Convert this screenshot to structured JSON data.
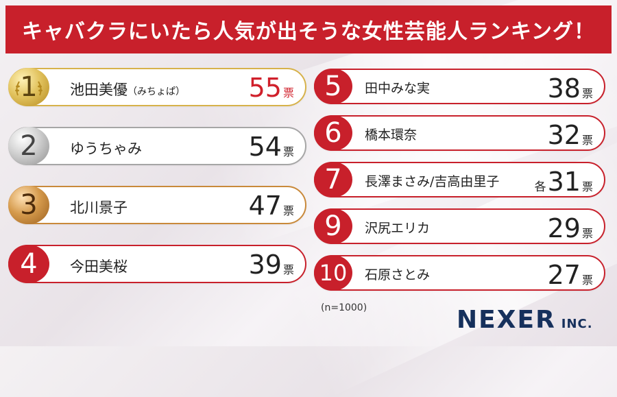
{
  "title": "キャバクラにいたら人気が出そうな女性芸能人ランキング！",
  "unit": "票",
  "each_prefix": "各",
  "ranking": [
    {
      "rank": "1",
      "name": "池田美優",
      "name_note": "（みちょぱ）",
      "votes": "55",
      "medal": "gold"
    },
    {
      "rank": "2",
      "name": "ゆうちゃみ",
      "votes": "54",
      "medal": "silver"
    },
    {
      "rank": "3",
      "name": "北川景子",
      "votes": "47",
      "medal": "bronze"
    },
    {
      "rank": "4",
      "name": "今田美桜",
      "votes": "39"
    },
    {
      "rank": "5",
      "name": "田中みな実",
      "votes": "38"
    },
    {
      "rank": "6",
      "name": "橋本環奈",
      "votes": "32"
    },
    {
      "rank": "7",
      "name": "長澤まさみ/吉高由里子",
      "votes": "31"
    },
    {
      "rank": "9",
      "name": "沢尻エリカ",
      "votes": "29"
    },
    {
      "rank": "10",
      "name": "石原さとみ",
      "votes": "27"
    }
  ],
  "sample_note": "(n=1000)",
  "logo": {
    "main": "NEXER",
    "sub": "INC."
  },
  "colors": {
    "accent": "#c8202b",
    "logo": "#16305c",
    "gold": "#d7b24a",
    "silver": "#a6a6a6",
    "bronze": "#c9893a"
  }
}
